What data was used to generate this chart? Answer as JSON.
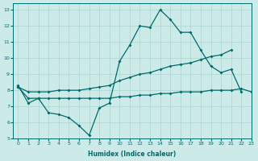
{
  "xlabel": "Humidex (Indice chaleur)",
  "background_color": "#cceae7",
  "grid_color": "#aad4d0",
  "line_color": "#006b6b",
  "xlim": [
    -0.5,
    23
  ],
  "ylim": [
    5,
    13.4
  ],
  "xticks": [
    0,
    1,
    2,
    3,
    4,
    5,
    6,
    7,
    8,
    9,
    10,
    11,
    12,
    13,
    14,
    15,
    16,
    17,
    18,
    19,
    20,
    21,
    22,
    23
  ],
  "yticks": [
    5,
    6,
    7,
    8,
    9,
    10,
    11,
    12,
    13
  ],
  "line1_x": [
    0,
    1,
    2,
    3,
    4,
    5,
    6,
    7,
    8,
    9,
    10,
    11,
    12,
    13,
    14,
    15,
    16,
    17,
    18,
    19,
    20,
    21,
    22
  ],
  "line1_y": [
    8.3,
    7.2,
    7.5,
    6.6,
    6.5,
    6.3,
    5.8,
    5.2,
    6.9,
    7.2,
    9.8,
    10.8,
    12.0,
    11.9,
    13.0,
    12.4,
    11.6,
    11.6,
    10.5,
    9.5,
    9.1,
    9.3,
    7.9
  ],
  "line2_x": [
    0,
    1,
    2,
    3,
    4,
    5,
    6,
    7,
    8,
    9,
    10,
    11,
    12,
    13,
    14,
    15,
    16,
    17,
    18,
    19,
    20,
    21
  ],
  "line2_y": [
    8.2,
    7.9,
    7.9,
    7.9,
    8.0,
    8.0,
    8.0,
    8.1,
    8.2,
    8.3,
    8.6,
    8.8,
    9.0,
    9.1,
    9.3,
    9.5,
    9.6,
    9.7,
    9.9,
    10.1,
    10.2,
    10.5
  ],
  "line3_x": [
    0,
    1,
    2,
    3,
    4,
    5,
    6,
    7,
    8,
    9,
    10,
    11,
    12,
    13,
    14,
    15,
    16,
    17,
    18,
    19,
    20,
    21,
    22,
    23
  ],
  "line3_y": [
    8.2,
    7.5,
    7.5,
    7.5,
    7.5,
    7.5,
    7.5,
    7.5,
    7.5,
    7.5,
    7.6,
    7.6,
    7.7,
    7.7,
    7.8,
    7.8,
    7.9,
    7.9,
    7.9,
    8.0,
    8.0,
    8.0,
    8.1,
    7.9
  ]
}
